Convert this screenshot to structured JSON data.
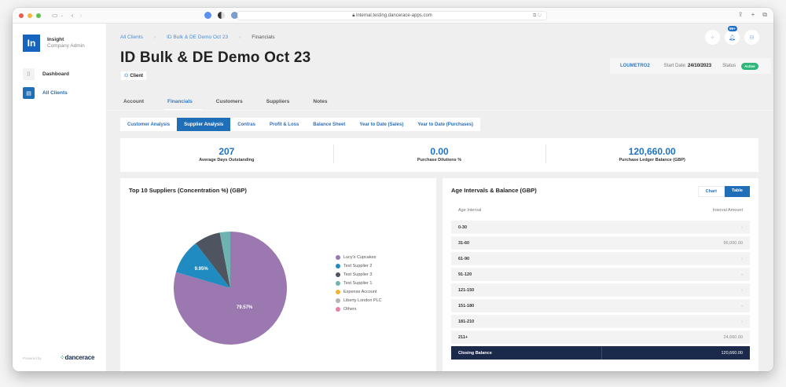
{
  "browser": {
    "url": "internal.testing.dancerace-apps.com",
    "traffic_lights": [
      "#ee5a52",
      "#f5b63f",
      "#5fc14c"
    ]
  },
  "sidebar": {
    "logo_text": "In",
    "app_name": "Insight",
    "app_subtitle": "Company Admin",
    "items": [
      {
        "label": "Dashboard",
        "icon": "grid-icon",
        "active": false
      },
      {
        "label": "All Clients",
        "icon": "clients-icon",
        "active": true
      }
    ],
    "powered_by": "Powered by",
    "vendor": "dancerace"
  },
  "header": {
    "breadcrumbs": [
      "All Clients",
      "ID Bulk & DE Demo Oct 23",
      "Financials"
    ],
    "title": "ID Bulk & DE Demo Oct 23",
    "chip": "Client",
    "notification_count": "99+",
    "client_code": "LOUMETRO2",
    "start_date_label": "Start Date:",
    "start_date": "24/10/2023",
    "status_label": "Status",
    "status": "Active"
  },
  "tabs": [
    "Account",
    "Financials",
    "Customers",
    "Suppliers",
    "Notes"
  ],
  "active_tab": "Financials",
  "subtabs": [
    "Customer Analysis",
    "Supplier Analysis",
    "Contras",
    "Profit & Loss",
    "Balance Sheet",
    "Year to Date (Sales)",
    "Year to Date (Purchases)"
  ],
  "active_subtab": "Supplier Analysis",
  "kpis": [
    {
      "value": "207",
      "label": "Average Days Outstanding"
    },
    {
      "value": "0.00",
      "label": "Purchase Dilutions %"
    },
    {
      "value": "120,660.00",
      "label": "Purchase Ledger Balance (GBP)"
    }
  ],
  "suppliers_card": {
    "title": "Top 10 Suppliers (Concentration %) (GBP)"
  },
  "chart_data": {
    "type": "pie",
    "title": "Top 10 Suppliers (Concentration %) (GBP)",
    "categories": [
      "Lucy's Cupcakes",
      "Test Supplier 2",
      "Test Supplier 3",
      "Test Supplier 1",
      "Expense Account",
      "Liberty London PLC",
      "Others"
    ],
    "values": [
      79.57,
      9.95,
      7.5,
      2.98,
      0,
      0,
      0
    ],
    "colors": [
      "#9b79b0",
      "#1f8bc0",
      "#4e5561",
      "#6fb3b0",
      "#f2b430",
      "#b4b4b4",
      "#ef7fa0"
    ],
    "data_labels": [
      "79.57%",
      "9.95%"
    ],
    "legend_position": "right"
  },
  "age_card": {
    "title": "Age Intervals & Balance (GBP)",
    "toggle": [
      "Chart",
      "Table"
    ],
    "active_toggle": "Table",
    "columns": [
      "Age Interval",
      "Interval Amount"
    ],
    "rows": [
      {
        "interval": "0-30",
        "amount": "-"
      },
      {
        "interval": "31-60",
        "amount": "96,000.00"
      },
      {
        "interval": "61-90",
        "amount": "-"
      },
      {
        "interval": "91-120",
        "amount": "-"
      },
      {
        "interval": "121-150",
        "amount": "-"
      },
      {
        "interval": "151-180",
        "amount": "-"
      },
      {
        "interval": "181-210",
        "amount": "-"
      },
      {
        "interval": "211+",
        "amount": "24,660.00"
      }
    ],
    "closing": {
      "label": "Closing Balance",
      "amount": "120,660.00"
    }
  }
}
